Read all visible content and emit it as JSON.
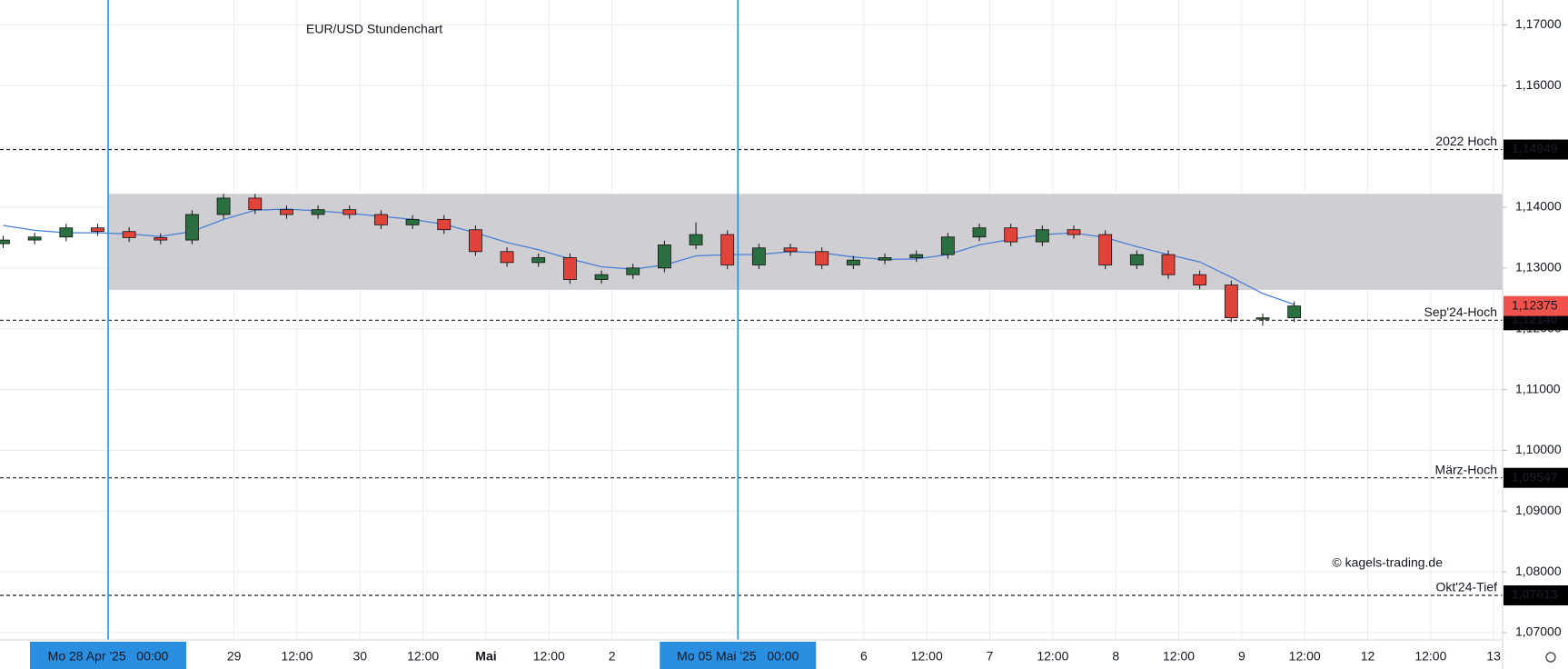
{
  "chart_data": {
    "type": "candlestick",
    "title": "EUR/USD Stundenchart",
    "watermark": "© kagels-trading.de",
    "up_color": "#2b6e3f",
    "down_color": "#e0433a",
    "xlim": [
      -20.6,
      265.7
    ],
    "ylim": [
      1.0688,
      1.1741
    ],
    "grid": true,
    "yticks": [
      {
        "value": 1.07,
        "label": "1,07000"
      },
      {
        "value": 1.08,
        "label": "1,08000"
      },
      {
        "value": 1.09,
        "label": "1,09000"
      },
      {
        "value": 1.1,
        "label": "1,10000"
      },
      {
        "value": 1.11,
        "label": "1,11000"
      },
      {
        "value": 1.12,
        "label": "1,12000"
      },
      {
        "value": 1.13,
        "label": "1,13000"
      },
      {
        "value": 1.14,
        "label": "1,14000"
      },
      {
        "value": 1.15,
        "label": "1,15000"
      },
      {
        "value": 1.16,
        "label": "1,16000"
      },
      {
        "value": 1.17,
        "label": "1,17000"
      }
    ],
    "xticks": [
      {
        "value": 24,
        "label": "29"
      },
      {
        "value": 36,
        "label": "12:00"
      },
      {
        "value": 48,
        "label": "30"
      },
      {
        "value": 60,
        "label": "12:00"
      },
      {
        "value": 72,
        "label": "Mai",
        "bold": true
      },
      {
        "value": 84,
        "label": "12:00"
      },
      {
        "value": 96,
        "label": "2"
      },
      {
        "value": 144,
        "label": "6"
      },
      {
        "value": 156,
        "label": "12:00"
      },
      {
        "value": 168,
        "label": "7"
      },
      {
        "value": 180,
        "label": "12:00"
      },
      {
        "value": 192,
        "label": "8"
      },
      {
        "value": 204,
        "label": "12:00"
      },
      {
        "value": 216,
        "label": "9"
      },
      {
        "value": 228,
        "label": "12:00"
      },
      {
        "value": 240,
        "label": "12"
      },
      {
        "value": 252,
        "label": "12:00"
      },
      {
        "value": 264,
        "label": "13"
      }
    ],
    "x": [
      -20,
      -14,
      -8,
      -2,
      4,
      10,
      16,
      22,
      28,
      34,
      40,
      46,
      52,
      58,
      64,
      70,
      76,
      82,
      88,
      94,
      100,
      106,
      112,
      118,
      124,
      130,
      136,
      142,
      148,
      154,
      160,
      166,
      172,
      178,
      184,
      190,
      196,
      202,
      208,
      214,
      220,
      226
    ],
    "open": [
      1.134,
      1.1346,
      1.1351,
      1.1366,
      1.136,
      1.135,
      1.1346,
      1.1388,
      1.1415,
      1.1396,
      1.1388,
      1.1396,
      1.1388,
      1.1371,
      1.138,
      1.1363,
      1.1327,
      1.1309,
      1.1317,
      1.1281,
      1.1289,
      1.13,
      1.1338,
      1.1355,
      1.1305,
      1.1333,
      1.1327,
      1.1305,
      1.1313,
      1.1317,
      1.1322,
      1.1351,
      1.1366,
      1.1343,
      1.1363,
      1.1355,
      1.1305,
      1.1322,
      1.1289,
      1.1272,
      1.1218,
      1.1218
    ],
    "high": [
      1.1353,
      1.1358,
      1.1373,
      1.1373,
      1.1367,
      1.1357,
      1.1395,
      1.1422,
      1.1422,
      1.1403,
      1.1403,
      1.1403,
      1.1395,
      1.1387,
      1.1387,
      1.137,
      1.1334,
      1.1324,
      1.1324,
      1.1296,
      1.1307,
      1.1345,
      1.1375,
      1.1362,
      1.134,
      1.134,
      1.1334,
      1.132,
      1.1324,
      1.1329,
      1.1358,
      1.1373,
      1.1373,
      1.137,
      1.137,
      1.1362,
      1.1329,
      1.1329,
      1.1296,
      1.1279,
      1.1225,
      1.1245
    ],
    "low": [
      1.1333,
      1.1339,
      1.1344,
      1.1353,
      1.1343,
      1.1339,
      1.1339,
      1.1381,
      1.1389,
      1.1381,
      1.1381,
      1.1381,
      1.1364,
      1.1364,
      1.1356,
      1.132,
      1.1302,
      1.1302,
      1.1274,
      1.1274,
      1.1282,
      1.1293,
      1.1331,
      1.1298,
      1.1298,
      1.132,
      1.1298,
      1.1298,
      1.1306,
      1.131,
      1.1315,
      1.1344,
      1.1336,
      1.1336,
      1.1348,
      1.1298,
      1.1298,
      1.1282,
      1.1265,
      1.1211,
      1.1205,
      1.1211
    ],
    "close": [
      1.1346,
      1.1351,
      1.1366,
      1.136,
      1.135,
      1.1346,
      1.1388,
      1.1415,
      1.1396,
      1.1388,
      1.1396,
      1.1388,
      1.1371,
      1.138,
      1.1363,
      1.1327,
      1.1309,
      1.1317,
      1.1281,
      1.1289,
      1.13,
      1.1338,
      1.1355,
      1.1305,
      1.1333,
      1.1327,
      1.1305,
      1.1313,
      1.1317,
      1.1322,
      1.1351,
      1.1366,
      1.1343,
      1.1363,
      1.1355,
      1.1305,
      1.1322,
      1.1289,
      1.1272,
      1.1218,
      1.1218,
      1.12375
    ],
    "ma": {
      "color": "#4a7fd6",
      "values": [
        1.137,
        1.1362,
        1.1358,
        1.1358,
        1.1356,
        1.1352,
        1.136,
        1.138,
        1.1395,
        1.1397,
        1.1394,
        1.139,
        1.1385,
        1.138,
        1.1372,
        1.1358,
        1.1342,
        1.133,
        1.1315,
        1.1302,
        1.1298,
        1.1305,
        1.132,
        1.1322,
        1.1322,
        1.1327,
        1.1325,
        1.1318,
        1.1314,
        1.1315,
        1.1322,
        1.1338,
        1.1347,
        1.1355,
        1.1358,
        1.135,
        1.1335,
        1.1322,
        1.131,
        1.1285,
        1.1258,
        1.124
      ]
    },
    "zone": [
      1.1264,
      1.1422
    ],
    "levels": [
      {
        "value": 1.14949,
        "name": "2022 Hoch",
        "price_label": "1,14949"
      },
      {
        "value": 1.1214,
        "name": "Sep'24-Hoch",
        "price_label": "1,12140"
      },
      {
        "value": 1.09547,
        "name": "März-Hoch",
        "price_label": "1,09547"
      },
      {
        "value": 1.07613,
        "name": "Okt'24-Tief",
        "price_label": "1,07613"
      }
    ],
    "current": {
      "value": 1.12375,
      "label": "1,12375",
      "color": "#f0534b"
    },
    "markers": [
      {
        "x": 0,
        "label": "Mo 28 Apr '25   00:00"
      },
      {
        "x": 120,
        "label": "Mo 05 Mai '25   00:00"
      }
    ],
    "marker_color": "#2a8fe0"
  }
}
